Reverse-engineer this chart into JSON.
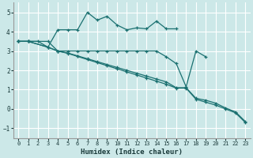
{
  "xlabel": "Humidex (Indice chaleur)",
  "xlim": [
    -0.5,
    23.5
  ],
  "ylim": [
    -1.5,
    5.5
  ],
  "yticks": [
    -1,
    0,
    1,
    2,
    3,
    4,
    5
  ],
  "xticks": [
    0,
    1,
    2,
    3,
    4,
    5,
    6,
    7,
    8,
    9,
    10,
    11,
    12,
    13,
    14,
    15,
    16,
    17,
    18,
    19,
    20,
    21,
    22,
    23
  ],
  "bg_color": "#cce8e8",
  "grid_color": "#ffffff",
  "line_color": "#1a7070",
  "lines": [
    {
      "x": [
        0,
        1,
        2,
        3,
        4,
        5,
        6,
        7,
        8,
        9,
        10,
        11,
        12,
        13,
        14,
        15,
        16
      ],
      "y": [
        3.5,
        3.5,
        3.5,
        3.2,
        4.1,
        4.1,
        4.1,
        5.0,
        4.6,
        4.8,
        4.35,
        4.1,
        4.2,
        4.15,
        4.55,
        4.15,
        4.15
      ]
    },
    {
      "x": [
        0,
        1,
        3,
        4,
        5,
        6,
        7,
        8,
        9,
        10,
        11,
        12,
        13,
        14,
        15,
        16,
        17,
        18,
        19
      ],
      "y": [
        3.5,
        3.5,
        3.5,
        3.0,
        3.0,
        3.0,
        3.0,
        3.0,
        3.0,
        3.0,
        3.0,
        3.0,
        3.0,
        3.0,
        2.7,
        2.35,
        1.15,
        3.0,
        2.7
      ]
    },
    {
      "x": [
        0,
        1,
        3,
        4,
        5,
        6,
        7,
        8,
        9,
        10,
        11,
        12,
        13,
        14,
        15,
        16,
        17,
        18,
        19,
        20,
        21,
        22,
        23
      ],
      "y": [
        3.5,
        3.5,
        3.2,
        3.0,
        2.9,
        2.75,
        2.6,
        2.45,
        2.3,
        2.15,
        2.0,
        1.85,
        1.7,
        1.55,
        1.4,
        1.1,
        1.1,
        0.55,
        0.45,
        0.3,
        0.05,
        -0.15,
        -0.65
      ]
    },
    {
      "x": [
        0,
        1,
        3,
        4,
        5,
        6,
        7,
        8,
        9,
        10,
        11,
        12,
        13,
        14,
        15,
        16,
        17,
        18,
        19,
        20,
        21,
        22,
        23
      ],
      "y": [
        3.5,
        3.5,
        3.2,
        3.0,
        2.88,
        2.72,
        2.56,
        2.4,
        2.24,
        2.08,
        1.92,
        1.76,
        1.6,
        1.44,
        1.28,
        1.08,
        1.08,
        0.5,
        0.35,
        0.2,
        0.0,
        -0.2,
        -0.7
      ]
    }
  ]
}
